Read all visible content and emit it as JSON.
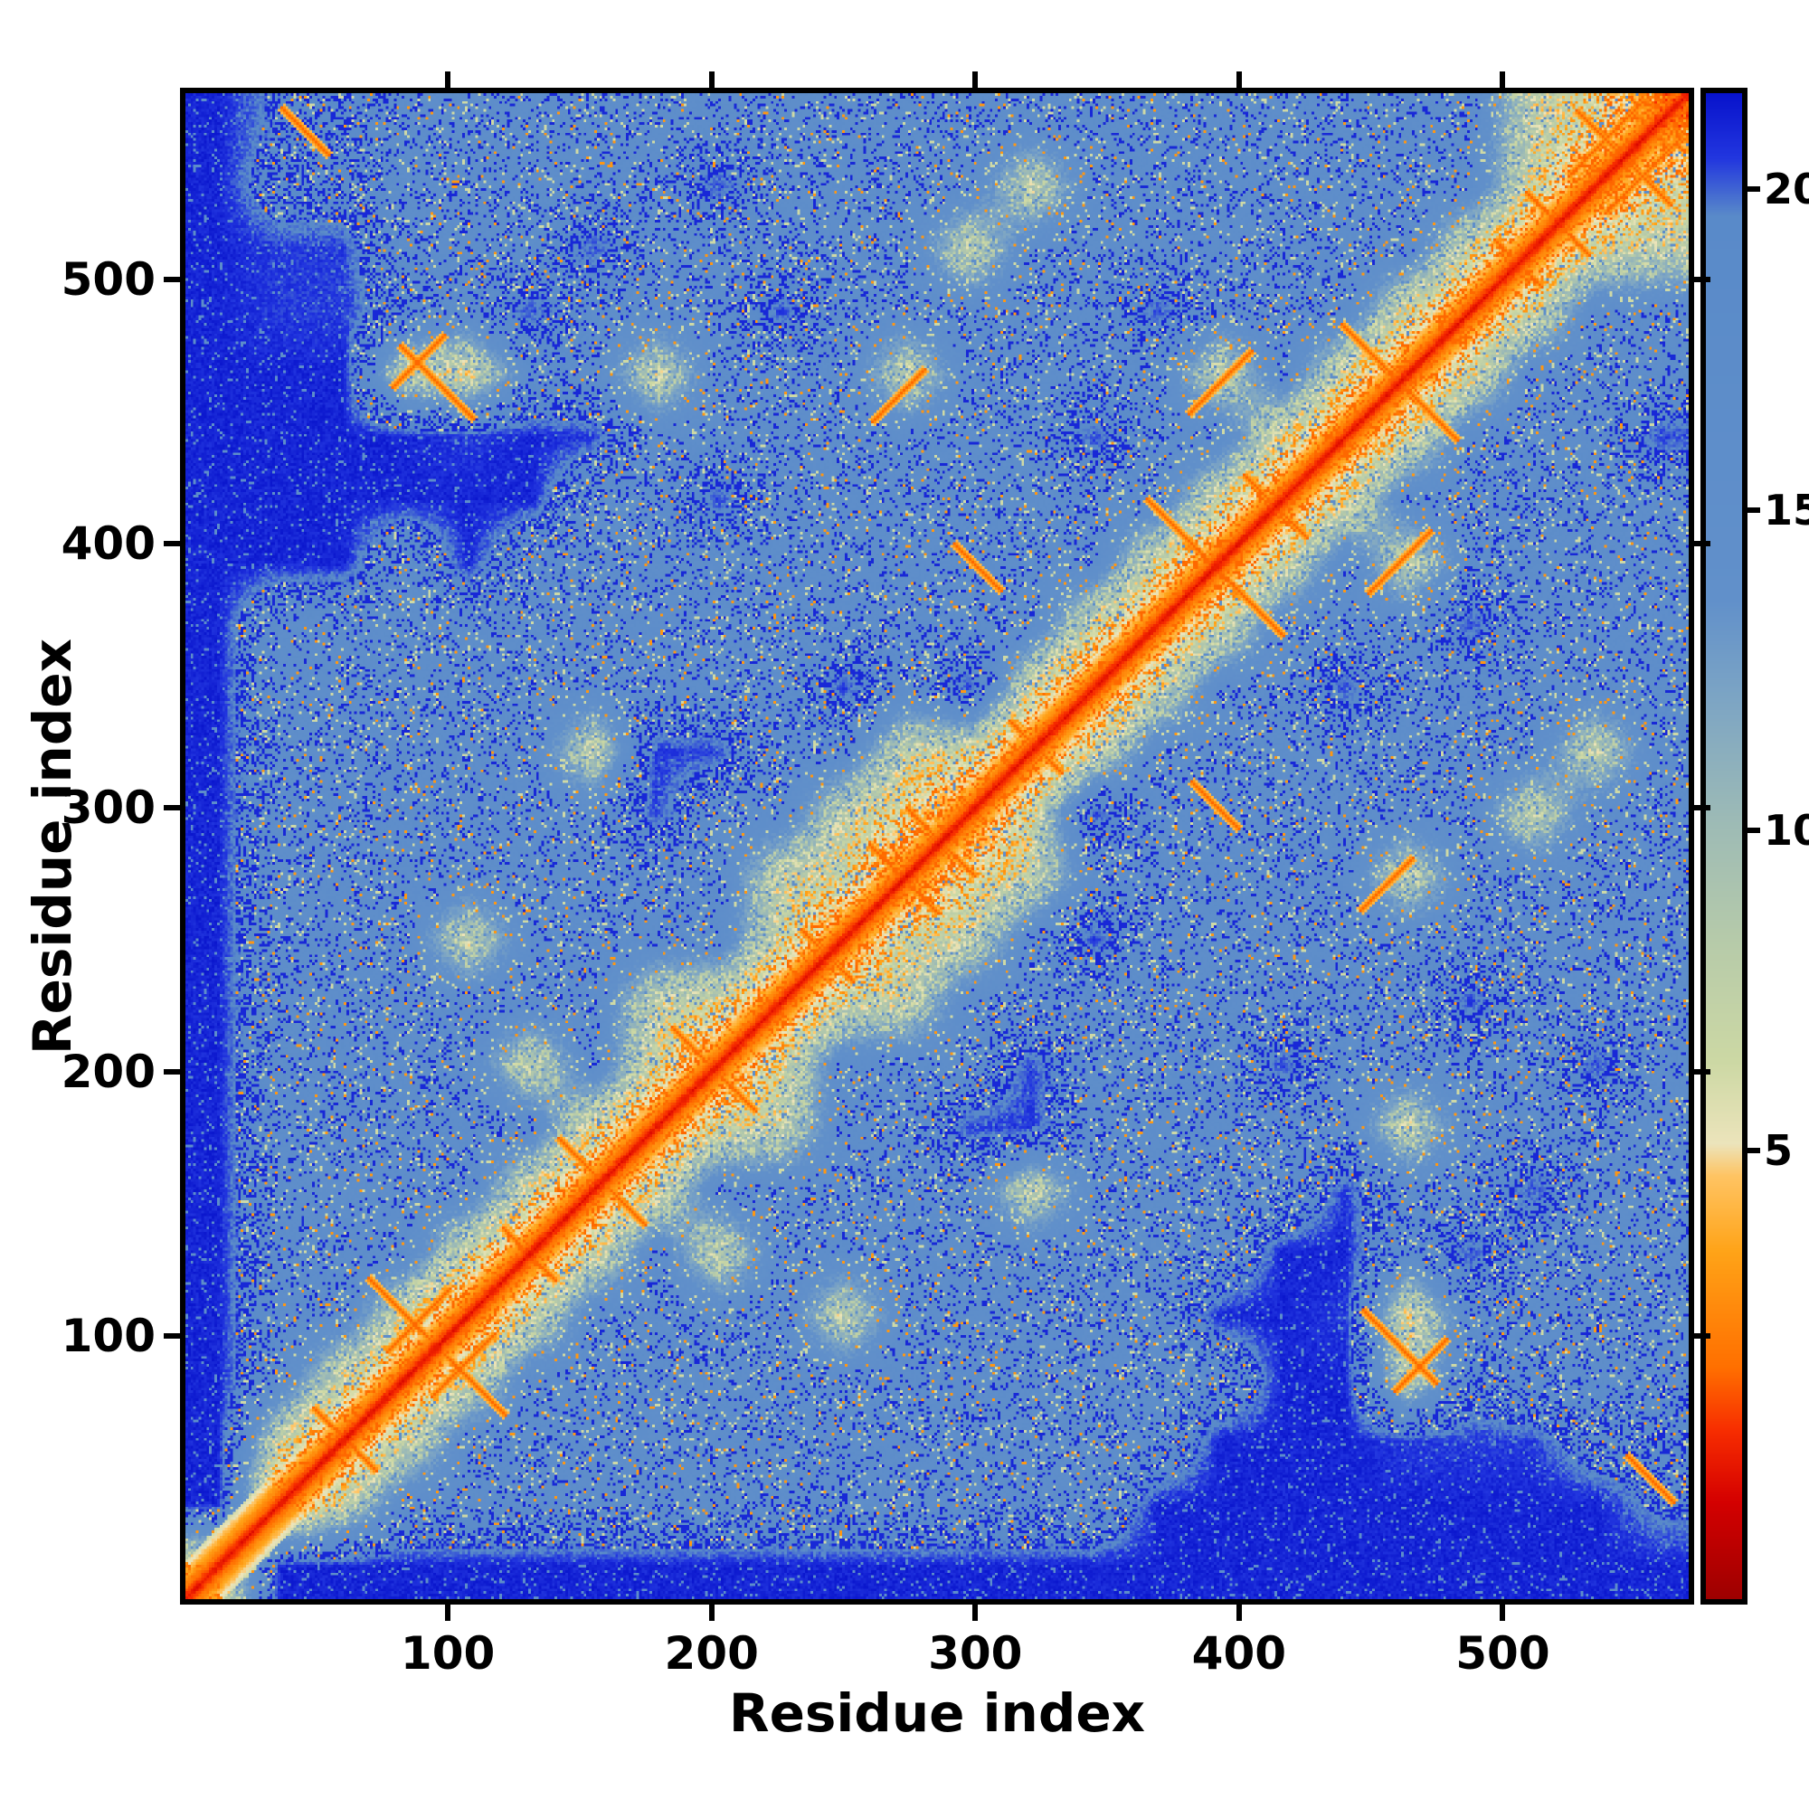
{
  "page": {
    "background": "#ffffff"
  },
  "chart_data": {
    "type": "heatmap",
    "title": "",
    "xlabel": "Residue index",
    "ylabel": "Residue index",
    "x_range": [
      1,
      570
    ],
    "y_range": [
      1,
      570
    ],
    "x_ticks": [
      100,
      200,
      300,
      400,
      500
    ],
    "y_ticks": [
      100,
      200,
      300,
      400,
      500
    ],
    "grid": false,
    "n_residues": 570,
    "description": "Symmetric residue-residue distance map: red diagonal (near-zero distance), orange contact band near the diagonal, light steel-blue mid-range background heavily speckled with dark blue, solid dark blue for the first ~25 residues (first row/column), and scattered orange X-shaped cross-diagonal contact features.",
    "colors_key": {
      "diagonal_red": "#d40000",
      "contact_orange": "#ff9c00",
      "pale_green": "#ccd8a4",
      "background_light_blue": "#598ac9",
      "far_dark_blue": "#0813cc"
    },
    "colorbar": {
      "position": "right",
      "ticks": [
        5,
        10,
        15,
        20
      ],
      "vmin": -2.0,
      "vmax": 21.5
    },
    "colormap_stops": [
      [
        -2.0,
        "#9e0000"
      ],
      [
        -0.5,
        "#d40000"
      ],
      [
        0.6,
        "#f72c00"
      ],
      [
        1.6,
        "#ff6f00"
      ],
      [
        3.4,
        "#ffa317"
      ],
      [
        4.6,
        "#ffc463"
      ],
      [
        5.1,
        "#ece4bb"
      ],
      [
        6.4,
        "#ccd8a4"
      ],
      [
        8.2,
        "#b7cba9"
      ],
      [
        10.2,
        "#9cbab6"
      ],
      [
        12.2,
        "#7aa3c5"
      ],
      [
        13.6,
        "#6190ca"
      ],
      [
        19.6,
        "#598ac9"
      ],
      [
        20.5,
        "#2236df"
      ],
      [
        21.5,
        "#0813cc"
      ]
    ],
    "matrix_bins": 24,
    "matrix_bin_size": 23.75,
    "matrix": [
      [
        6,
        21,
        21,
        21,
        21,
        21,
        21,
        21,
        21,
        21,
        21,
        21,
        21,
        21,
        21,
        21,
        21,
        21,
        21,
        21,
        21,
        21,
        21,
        21
      ],
      [
        21,
        2.5,
        8,
        16,
        16,
        16,
        16,
        16,
        16,
        16,
        16,
        16,
        16,
        16,
        16,
        21,
        21,
        21,
        21,
        21,
        21,
        21,
        21,
        19
      ],
      [
        21,
        8,
        2.5,
        8,
        16,
        16,
        16,
        15,
        16,
        16,
        16,
        16,
        16,
        16,
        16,
        16,
        21,
        21,
        21,
        20.5,
        20.5,
        20.5,
        18,
        18
      ],
      [
        21,
        16,
        8,
        2.5,
        7.5,
        16,
        16,
        16,
        16,
        16,
        16,
        16,
        16,
        16,
        16,
        16,
        16,
        21,
        21,
        8.5,
        18,
        16,
        16,
        16
      ],
      [
        21,
        16,
        16,
        7.5,
        2,
        7.5,
        16,
        16,
        16,
        16,
        8.5,
        16,
        16,
        16,
        16,
        16,
        21,
        21,
        20.5,
        7.5,
        16,
        16,
        16,
        16
      ],
      [
        21,
        16,
        16,
        16,
        7.5,
        2,
        7.5,
        16,
        8.5,
        16,
        16,
        16,
        16,
        16,
        16,
        16,
        16,
        21,
        21,
        16,
        20.5,
        16,
        16,
        16
      ],
      [
        21,
        16,
        15,
        16,
        16,
        7.5,
        2,
        7.5,
        16,
        16,
        16,
        16,
        16,
        8.5,
        16,
        16,
        16,
        16,
        20.5,
        16,
        16,
        20.5,
        16,
        16
      ],
      [
        21,
        16,
        16,
        16,
        16,
        16,
        7.5,
        2,
        7.5,
        8.5,
        16,
        16,
        20.5,
        20.5,
        16,
        16,
        16,
        16,
        16,
        8.5,
        16,
        16,
        16,
        16
      ],
      [
        21,
        16,
        16,
        16,
        16,
        8.5,
        16,
        7.5,
        2,
        7.5,
        16,
        16,
        16,
        20.5,
        16,
        16,
        16,
        20.5,
        16,
        16,
        16,
        16,
        20.5,
        16
      ],
      [
        21,
        16,
        16,
        16,
        16,
        16,
        16,
        8.5,
        7.5,
        2,
        7.5,
        8.5,
        16,
        16,
        16,
        16,
        16,
        16,
        16,
        16,
        20.5,
        16,
        16,
        16
      ],
      [
        21,
        16,
        16,
        16,
        8.5,
        16,
        16,
        16,
        16,
        7.5,
        2,
        7.5,
        8.5,
        16,
        20.5,
        16,
        16,
        16,
        16,
        16,
        16,
        16,
        16,
        16
      ],
      [
        21,
        16,
        16,
        16,
        16,
        16,
        16,
        16,
        16,
        8.5,
        7.5,
        1.5,
        6,
        8.5,
        16,
        16,
        16,
        16,
        16,
        8.5,
        16,
        16,
        16,
        16
      ],
      [
        21,
        16,
        16,
        16,
        16,
        16,
        16,
        20.5,
        16,
        16,
        8.5,
        6,
        1.5,
        7.5,
        20.5,
        16,
        16,
        16,
        16,
        16,
        16,
        8.5,
        16,
        16
      ],
      [
        21,
        16,
        16,
        16,
        16,
        16,
        8.5,
        20.5,
        20.5,
        16,
        16,
        8.5,
        7.5,
        2,
        7.5,
        16,
        16,
        16,
        16,
        16,
        16,
        16,
        8.5,
        16
      ],
      [
        21,
        16,
        16,
        16,
        16,
        16,
        16,
        16,
        16,
        16,
        20.5,
        16,
        20.5,
        7.5,
        2,
        7.5,
        16,
        16,
        20.5,
        16,
        16,
        16,
        16,
        16
      ],
      [
        21,
        16,
        16,
        16,
        16,
        16,
        16,
        16,
        16,
        16,
        16,
        16,
        16,
        16,
        7.5,
        2,
        7.5,
        16,
        16,
        16,
        20.5,
        16,
        16,
        16
      ],
      [
        21,
        21,
        21,
        16,
        21,
        16,
        16,
        16,
        16,
        16,
        16,
        16,
        16,
        16,
        16,
        7.5,
        1.5,
        7.5,
        16,
        8.5,
        16,
        16,
        16,
        16
      ],
      [
        21,
        21,
        21,
        21,
        21,
        21,
        16,
        16,
        20.5,
        16,
        16,
        16,
        16,
        16,
        16,
        16,
        7.5,
        2,
        7.5,
        16,
        16,
        16,
        16,
        16
      ],
      [
        21,
        21,
        21,
        21,
        20.5,
        21,
        20.5,
        16,
        16,
        16,
        16,
        16,
        16,
        16,
        20.5,
        16,
        16,
        7.5,
        2,
        7.5,
        16,
        16,
        16,
        20.5
      ],
      [
        21,
        21,
        21,
        8.5,
        7.5,
        16,
        16,
        8.5,
        16,
        16,
        16,
        8.5,
        16,
        16,
        16,
        16,
        8.5,
        16,
        7.5,
        1.5,
        7.5,
        16,
        16,
        16
      ],
      [
        21,
        20.5,
        20.5,
        18,
        16,
        20.5,
        16,
        16,
        16,
        20.5,
        16,
        16,
        16,
        16,
        16,
        20.5,
        16,
        16,
        16,
        7.5,
        2,
        7.5,
        16,
        16
      ],
      [
        21,
        20.5,
        20.5,
        16,
        16,
        16,
        20.5,
        16,
        16,
        16,
        16,
        16,
        8.5,
        16,
        16,
        16,
        16,
        16,
        16,
        16,
        7.5,
        2,
        7.5,
        8.5
      ],
      [
        21,
        18,
        18,
        16,
        16,
        16,
        16,
        16,
        20.5,
        16,
        16,
        16,
        16,
        8.5,
        16,
        16,
        16,
        16,
        16,
        16,
        16,
        7.5,
        1.5,
        6.5
      ],
      [
        21,
        19,
        18,
        16,
        16,
        16,
        16,
        16,
        16,
        16,
        16,
        16,
        16,
        16,
        16,
        16,
        16,
        16,
        16,
        16,
        16,
        8.5,
        6.5,
        1.5
      ]
    ],
    "diag_band": {
      "slope": 0.42,
      "half_width": 14
    },
    "features": [
      {
        "cx": 60,
        "cy": 60,
        "len": 12,
        "dir": "anti"
      },
      {
        "cx": 95,
        "cy": 95,
        "len": 26,
        "dir": "anti"
      },
      {
        "cx": 130,
        "cy": 130,
        "len": 10,
        "dir": "anti"
      },
      {
        "cx": 165,
        "cy": 150,
        "len": 9,
        "dir": "anti"
      },
      {
        "cx": 200,
        "cy": 200,
        "len": 16,
        "dir": "anti"
      },
      {
        "cx": 243,
        "cy": 243,
        "len": 10,
        "dir": "anti"
      },
      {
        "cx": 272,
        "cy": 272,
        "len": 13,
        "dir": "anti"
      },
      {
        "cx": 286,
        "cy": 286,
        "len": 13,
        "dir": "anti"
      },
      {
        "cx": 322,
        "cy": 322,
        "len": 10,
        "dir": "anti"
      },
      {
        "cx": 390,
        "cy": 390,
        "len": 26,
        "dir": "anti"
      },
      {
        "cx": 413,
        "cy": 413,
        "len": 12,
        "dir": "anti"
      },
      {
        "cx": 460,
        "cy": 460,
        "len": 22,
        "dir": "anti"
      },
      {
        "cx": 505,
        "cy": 505,
        "len": 9,
        "dir": "anti"
      },
      {
        "cx": 520,
        "cy": 520,
        "len": 12,
        "dir": "anti"
      },
      {
        "cx": 545,
        "cy": 545,
        "len": 18,
        "dir": "anti"
      },
      {
        "cx": 105,
        "cy": 88,
        "len": 12,
        "dir": "diag"
      },
      {
        "cx": 460,
        "cy": 95,
        "len": 14,
        "dir": "anti"
      },
      {
        "cx": 468,
        "cy": 88,
        "len": 10,
        "dir": "diag"
      },
      {
        "cx": 555,
        "cy": 45,
        "len": 9,
        "dir": "anti"
      },
      {
        "cx": 460,
        "cy": 392,
        "len": 12,
        "dir": "diag"
      },
      {
        "cx": 552,
        "cy": 538,
        "len": 14,
        "dir": "diag"
      },
      {
        "cx": 270,
        "cy": 455,
        "len": 10,
        "dir": "diag"
      },
      {
        "cx": 390,
        "cy": 300,
        "len": 9,
        "dir": "anti"
      }
    ],
    "speckle": {
      "dark_prob_max": 0.55,
      "pale_prob": 0.045,
      "orange_prob": 0.017
    }
  }
}
